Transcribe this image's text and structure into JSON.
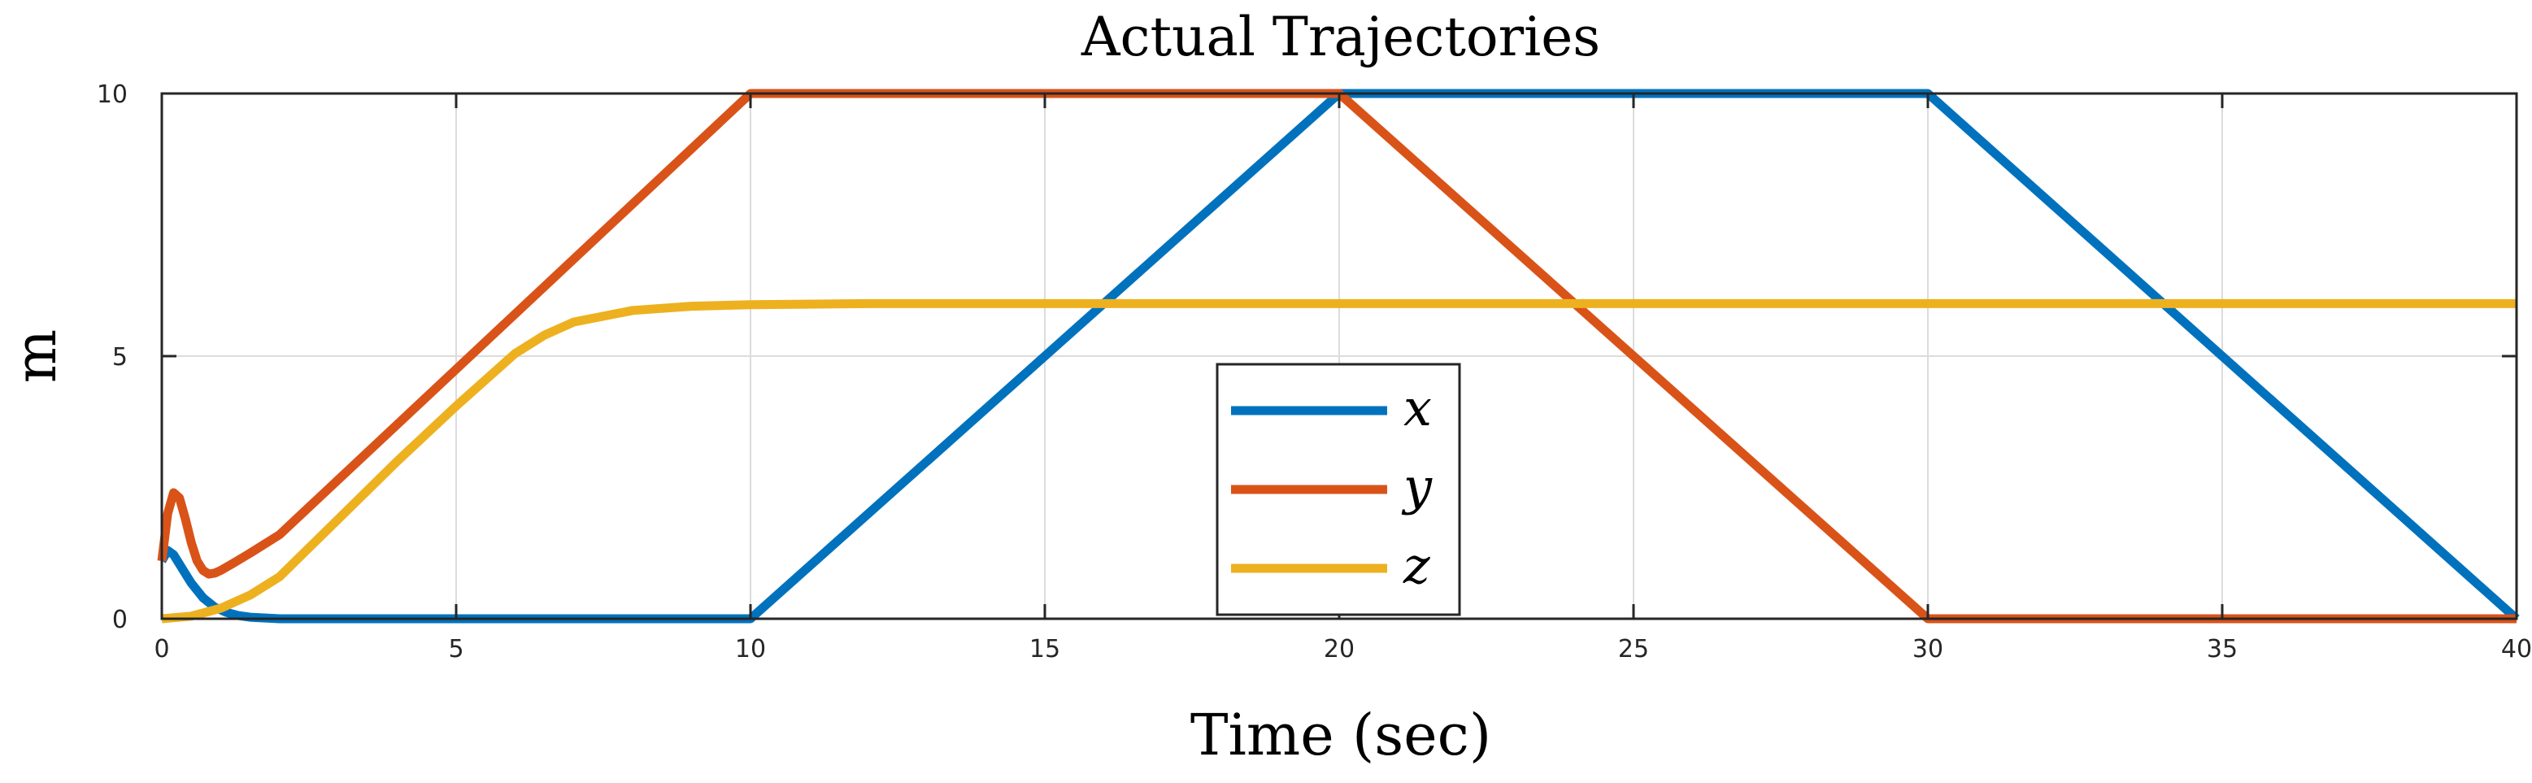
{
  "chart_data": {
    "type": "line",
    "title": "Actual Trajectories",
    "xlabel": "Time (sec)",
    "ylabel": "m",
    "xlim": [
      0,
      40
    ],
    "ylim": [
      0,
      10
    ],
    "xticks": [
      0,
      5,
      10,
      15,
      20,
      25,
      30,
      35,
      40
    ],
    "yticks": [
      0,
      5,
      10
    ],
    "grid": true,
    "legend_position": "center",
    "series": [
      {
        "name": "x",
        "color": "#0072BD",
        "x": [
          0.0,
          0.1,
          0.2,
          0.35,
          0.5,
          0.7,
          0.9,
          1.1,
          1.3,
          1.5,
          2.0,
          3.0,
          5.0,
          8.0,
          10.0,
          20.0,
          30.0,
          40.0
        ],
        "y": [
          1.1,
          1.3,
          1.22,
          0.95,
          0.68,
          0.4,
          0.22,
          0.12,
          0.06,
          0.03,
          0.0,
          0.0,
          0.0,
          0.0,
          0.0,
          10.0,
          10.0,
          0.0
        ]
      },
      {
        "name": "y",
        "color": "#D95319",
        "x": [
          0.0,
          0.1,
          0.2,
          0.3,
          0.4,
          0.5,
          0.6,
          0.7,
          0.8,
          0.9,
          1.0,
          1.2,
          1.5,
          2.0,
          10.0,
          20.0,
          30.0,
          40.0
        ],
        "y": [
          1.1,
          2.0,
          2.4,
          2.3,
          1.9,
          1.45,
          1.1,
          0.92,
          0.85,
          0.87,
          0.92,
          1.05,
          1.25,
          1.6,
          10.0,
          10.0,
          0.0,
          0.0
        ]
      },
      {
        "name": "z",
        "color": "#EDB120",
        "x": [
          0.0,
          0.5,
          1.0,
          1.5,
          2.0,
          3.0,
          4.0,
          5.0,
          6.0,
          6.5,
          7.0,
          8.0,
          9.0,
          10.0,
          12.0,
          15.0,
          20.0,
          30.0,
          40.0
        ],
        "y": [
          0.0,
          0.05,
          0.2,
          0.45,
          0.8,
          1.9,
          3.0,
          4.05,
          5.05,
          5.4,
          5.65,
          5.87,
          5.95,
          5.98,
          6.0,
          6.0,
          6.0,
          6.0,
          6.0
        ]
      }
    ]
  }
}
